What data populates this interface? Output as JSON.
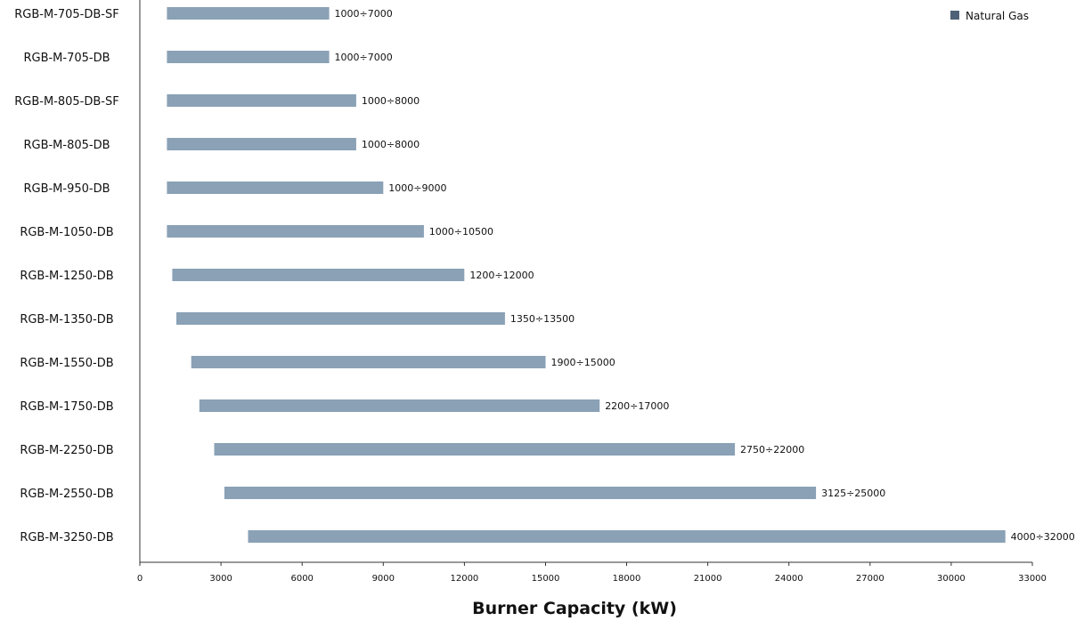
{
  "chart_data": {
    "type": "bar",
    "orientation": "horizontal",
    "style": "floating-range",
    "xlabel": "Burner Capacity (kW)",
    "xlim": [
      0,
      33000
    ],
    "xticks": [
      0,
      3000,
      6000,
      9000,
      12000,
      15000,
      18000,
      21000,
      24000,
      27000,
      30000,
      33000
    ],
    "grid": false,
    "legend": {
      "position": "top-right",
      "entries": [
        "Natural Gas"
      ]
    },
    "colors": {
      "bar": "#8aa1b6",
      "legend_marker": "#4f6177",
      "axis": "#333333"
    },
    "series": [
      {
        "name": "Natural Gas",
        "data": [
          {
            "category": "RGB-M-705-DB-SF",
            "min": 1000,
            "max": 7000,
            "label": "1000÷7000"
          },
          {
            "category": "RGB-M-705-DB",
            "min": 1000,
            "max": 7000,
            "label": "1000÷7000"
          },
          {
            "category": "RGB-M-805-DB-SF",
            "min": 1000,
            "max": 8000,
            "label": "1000÷8000"
          },
          {
            "category": "RGB-M-805-DB",
            "min": 1000,
            "max": 8000,
            "label": "1000÷8000"
          },
          {
            "category": "RGB-M-950-DB",
            "min": 1000,
            "max": 9000,
            "label": "1000÷9000"
          },
          {
            "category": "RGB-M-1050-DB",
            "min": 1000,
            "max": 10500,
            "label": "1000÷10500"
          },
          {
            "category": "RGB-M-1250-DB",
            "min": 1200,
            "max": 12000,
            "label": "1200÷12000"
          },
          {
            "category": "RGB-M-1350-DB",
            "min": 1350,
            "max": 13500,
            "label": "1350÷13500"
          },
          {
            "category": "RGB-M-1550-DB",
            "min": 1900,
            "max": 15000,
            "label": "1900÷15000"
          },
          {
            "category": "RGB-M-1750-DB",
            "min": 2200,
            "max": 17000,
            "label": "2200÷17000"
          },
          {
            "category": "RGB-M-2250-DB",
            "min": 2750,
            "max": 22000,
            "label": "2750÷22000"
          },
          {
            "category": "RGB-M-2550-DB",
            "min": 3125,
            "max": 25000,
            "label": "3125÷25000"
          },
          {
            "category": "RGB-M-3250-DB",
            "min": 4000,
            "max": 32000,
            "label": "4000÷32000"
          }
        ]
      }
    ]
  }
}
